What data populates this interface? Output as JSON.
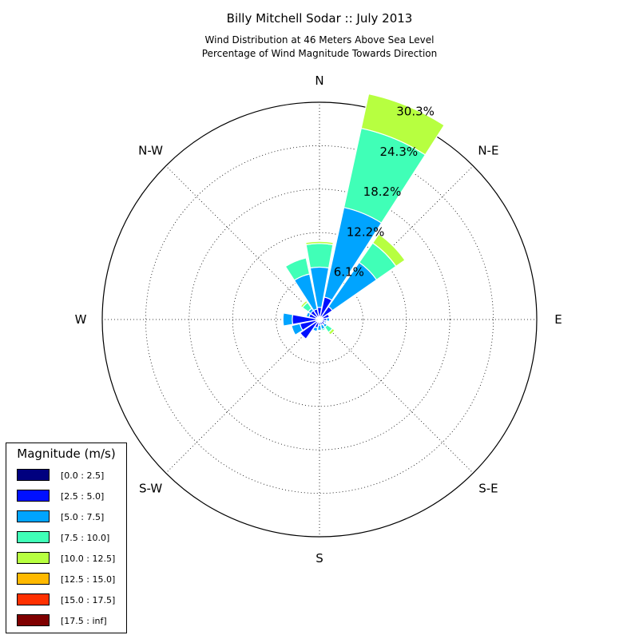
{
  "chart_data": {
    "type": "windrose",
    "title": "Billy Mitchell Sodar :: July 2013",
    "subtitle_lines": [
      "Wind Distribution at 46 Meters Above Sea Level",
      "Percentage of Wind Magnitude Towards Direction"
    ],
    "direction_labels": [
      "N",
      "N-E",
      "E",
      "S-E",
      "S",
      "S-W",
      "W",
      "N-W"
    ],
    "radial_ticks": [
      "6.1%",
      "12.2%",
      "18.2%",
      "24.3%",
      "30.3%"
    ],
    "rmax": 30.3,
    "bin_labels": [
      "[0.0 : 2.5]",
      "[2.5 : 5.0]",
      "[5.0 : 7.5]",
      "[7.5 : 10.0]",
      "[10.0 : 12.5]",
      "[12.5 : 15.0]",
      "[15.0 : 17.5]",
      "[17.5 : inf]"
    ],
    "bin_colors": [
      "#00007f",
      "#0010ff",
      "#00a4ff",
      "#40ffb7",
      "#b7ff40",
      "#ffb900",
      "#ff3000",
      "#7f0000"
    ],
    "directions_deg": [
      0,
      22.5,
      45,
      67.5,
      90,
      112.5,
      135,
      157.5,
      180,
      202.5,
      225,
      247.5,
      270,
      292.5,
      315,
      337.5
    ],
    "series": [
      {
        "name": "[0.0 : 2.5]",
        "values": [
          0.4,
          0.4,
          0.5,
          0.5,
          0.5,
          0.4,
          0.4,
          0.4,
          0.4,
          0.4,
          0.4,
          0.5,
          0.5,
          0.5,
          0.4,
          0.4
        ]
      },
      {
        "name": "[2.5 : 5.0]",
        "values": [
          1.3,
          2.8,
          1.7,
          0.9,
          0.5,
          0.4,
          0.5,
          0.4,
          0.4,
          0.8,
          2.9,
          2.3,
          3.3,
          1.0,
          1.1,
          1.1
        ]
      },
      {
        "name": "[5.0 : 7.5]",
        "values": [
          5.6,
          12.8,
          7.5,
          0.0,
          0.4,
          0.2,
          0.4,
          0.6,
          0.7,
          0.5,
          0.1,
          1.2,
          1.3,
          0.4,
          0.4,
          5.0
        ]
      },
      {
        "name": "[7.5 : 10.0]",
        "values": [
          3.3,
          11.3,
          3.3,
          0.0,
          0.0,
          0.0,
          0.9,
          0.2,
          0.0,
          0.0,
          0.0,
          0.0,
          0.0,
          0.1,
          1.0,
          2.3
        ]
      },
      {
        "name": "[10.0 : 12.5]",
        "values": [
          0.3,
          4.9,
          1.5,
          0.0,
          0.0,
          0.0,
          0.4,
          0.0,
          0.0,
          0.0,
          0.0,
          0.0,
          0.0,
          0.0,
          0.3,
          0.1
        ]
      },
      {
        "name": "[12.5 : 15.0]",
        "values": [
          0,
          0,
          0,
          0,
          0,
          0,
          0,
          0,
          0,
          0,
          0,
          0,
          0,
          0,
          0,
          0
        ]
      },
      {
        "name": "[15.0 : 17.5]",
        "values": [
          0,
          0,
          0,
          0,
          0,
          0,
          0,
          0,
          0,
          0,
          0,
          0,
          0,
          0,
          0,
          0
        ]
      },
      {
        "name": "[17.5 : inf]",
        "values": [
          0,
          0,
          0,
          0,
          0,
          0,
          0,
          0,
          0,
          0,
          0,
          0,
          0,
          0,
          0,
          0
        ]
      }
    ],
    "legend": {
      "title": "Magnitude (m/s)",
      "placement": "bottom-left"
    },
    "grid": true
  }
}
